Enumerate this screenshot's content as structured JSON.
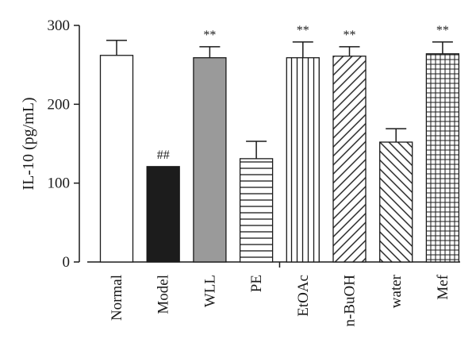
{
  "chart_data": {
    "type": "bar",
    "title": "",
    "xlabel": "",
    "ylabel": "IL-10 (pg/mL)",
    "ylim": [
      0,
      300
    ],
    "yticks": [
      0,
      100,
      200,
      300
    ],
    "grid": false,
    "categories": [
      "Normal",
      "Model",
      "WLL",
      "PE",
      "EtOAc",
      "n-BuOH",
      "water",
      "Mef"
    ],
    "values": [
      262,
      121,
      259,
      131,
      259,
      261,
      152,
      264
    ],
    "errors": [
      19,
      0,
      14,
      22,
      20,
      12,
      17,
      15
    ],
    "annotations": [
      "",
      "##",
      "**",
      "",
      "**",
      "**",
      "",
      "**"
    ],
    "fills": [
      "white",
      "black",
      "gray",
      "horizontal-lines",
      "vertical-lines",
      "diagonal-lines",
      "back-diagonal-lines",
      "grid"
    ],
    "colors": {
      "axis": "#1a1a1a",
      "black_bar": "#1c1c1c",
      "gray_bar": "#9a9a9a"
    }
  }
}
